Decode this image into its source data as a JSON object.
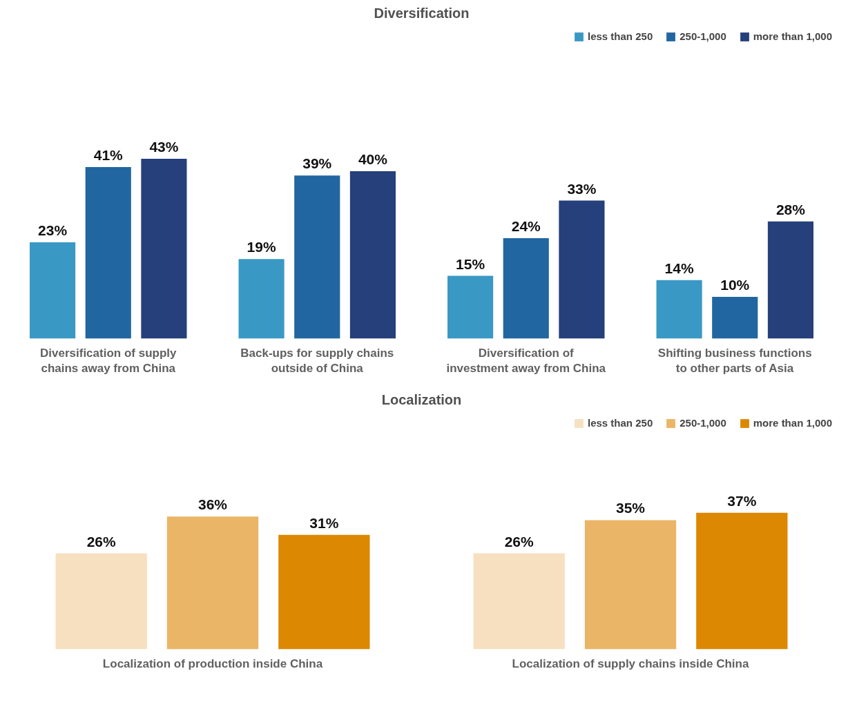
{
  "chart_data": [
    {
      "type": "bar",
      "title": "Diversification",
      "categories": [
        "Diversification of supply chains away from China",
        "Back-ups for supply chains outside of China",
        "Diversification of investment away from China",
        "Shifting business functions to other parts of Asia"
      ],
      "series": [
        {
          "name": "less than 250",
          "color": "#3a98c4",
          "values": [
            23,
            19,
            15,
            14
          ],
          "value_labels": [
            "23%",
            "19%",
            "15%",
            "14%"
          ]
        },
        {
          "name": "250-1,000",
          "color": "#2166a0",
          "values": [
            41,
            39,
            24,
            10
          ],
          "value_labels": [
            "41%",
            "39%",
            "24%",
            "10%"
          ]
        },
        {
          "name": "more than 1,000",
          "color": "#25407a",
          "values": [
            43,
            40,
            33,
            28
          ],
          "value_labels": [
            "43%",
            "40%",
            "33%",
            "28%"
          ]
        }
      ],
      "legend": "top right",
      "grid": false,
      "tick_labels": "x"
    },
    {
      "type": "bar",
      "title": "Localization",
      "categories": [
        "Localization of production inside China",
        "Localization of supply chains inside China"
      ],
      "series": [
        {
          "name": "less than 250",
          "color": "#f7e0c0",
          "values": [
            26,
            26
          ],
          "value_labels": [
            "26%",
            "26%"
          ]
        },
        {
          "name": "250-1,000",
          "color": "#eab566",
          "values": [
            36,
            35
          ],
          "value_labels": [
            "36%",
            "35%"
          ]
        },
        {
          "name": "more than 1,000",
          "color": "#dd8802",
          "values": [
            31,
            37
          ],
          "value_labels": [
            "31%",
            "37%"
          ]
        }
      ],
      "legend": "top right",
      "grid": false,
      "tick_labels": "x"
    }
  ]
}
